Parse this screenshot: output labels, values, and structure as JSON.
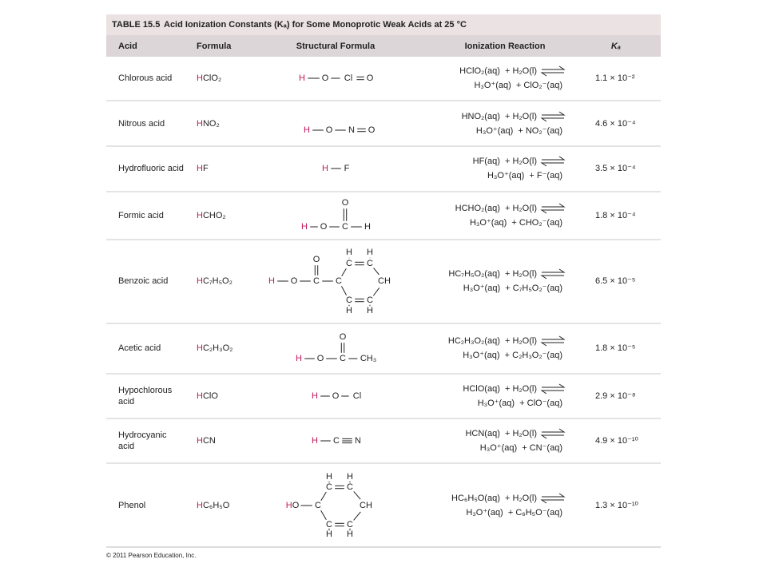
{
  "table": {
    "title_label": "TABLE 15.5",
    "title": "Acid Ionization Constants (Kₐ) for Some Monoprotic Weak Acids at 25 °C",
    "headers": [
      "Acid",
      "Formula",
      "Structural Formula",
      "Ionization Reaction",
      "Kₐ"
    ],
    "rows": [
      {
        "acid": [
          "Chlorous acid"
        ],
        "formula": "HClO₂",
        "structure": [
          "H",
          "O",
          "Cl",
          "O"
        ],
        "reaction": [
          "HClO₂(aq)  + H₂O(l)",
          "H₃O⁺(aq)  + ClO₂⁻(aq)"
        ],
        "ka": "1.1 × 10⁻²"
      },
      {
        "acid": [
          "Nitrous acid"
        ],
        "formula": "HNO₂",
        "structure": [
          "H",
          "O",
          "N",
          "O"
        ],
        "reaction": [
          "HNO₂(aq)  + H₂O(l)",
          "H₃O⁺(aq)  + NO₂⁻(aq)"
        ],
        "ka": "4.6 × 10⁻⁴"
      },
      {
        "acid": [
          "Hydrofluoric acid"
        ],
        "formula": "HF",
        "structure": [
          "H",
          "F"
        ],
        "reaction": [
          "HF(aq)  + H₂O(l)",
          "H₃O⁺(aq)  + F⁻(aq)"
        ],
        "ka": "3.5 × 10⁻⁴"
      },
      {
        "acid": [
          "Formic acid"
        ],
        "formula": "HCHO₂",
        "structure": [
          "O",
          "H",
          "O",
          "C",
          "H"
        ],
        "reaction": [
          "HCHO₂(aq)  + H₂O(l)",
          "H₃O⁺(aq)  + CHO₂⁻(aq)"
        ],
        "ka": "1.8 × 10⁻⁴"
      },
      {
        "acid": [
          "Benzoic acid"
        ],
        "formula": "HC₇H₅O₂",
        "structure": [
          "O",
          "H",
          "O",
          "C",
          "C",
          "C",
          "C",
          "CH",
          "C",
          "C",
          "H",
          "H",
          "H",
          "H"
        ],
        "reaction": [
          "HC₇H₅O₂(aq)  + H₂O(l)",
          "H₃O⁺(aq)  + C₇H₅O₂⁻(aq)"
        ],
        "ka": "6.5 × 10⁻⁵"
      },
      {
        "acid": [
          "Acetic acid"
        ],
        "formula": "HC₂H₃O₂",
        "structure": [
          "O",
          "H",
          "O",
          "C",
          "CH₃"
        ],
        "reaction": [
          "HC₂H₃O₂(aq)  + H₂O(l)",
          "H₃O⁺(aq)  + C₂H₃O₂⁻(aq)"
        ],
        "ka": "1.8 × 10⁻⁵"
      },
      {
        "acid": [
          "Hypochlorous",
          "acid"
        ],
        "formula": "HClO",
        "structure": [
          "H",
          "O",
          "Cl"
        ],
        "reaction": [
          "HClO(aq)  + H₂O(l)",
          "H₃O⁺(aq)  + ClO⁻(aq)"
        ],
        "ka": "2.9 × 10⁻⁸"
      },
      {
        "acid": [
          "Hydrocyanic",
          "acid"
        ],
        "formula": "HCN",
        "structure": [
          "H",
          "C",
          "N"
        ],
        "reaction": [
          "HCN(aq)  + H₂O(l)",
          "H₃O⁺(aq)  + CN⁻(aq)"
        ],
        "ka": "4.9 × 10⁻¹⁰"
      },
      {
        "acid": [
          "Phenol"
        ],
        "formula": "HC₆H₅O",
        "structure": [
          "HO",
          "C",
          "C",
          "C",
          "CH",
          "C",
          "C",
          "H",
          "H",
          "H",
          "H"
        ],
        "reaction": [
          "HC₆H₅O(aq)  + H₂O(l)",
          "H₃O⁺(aq)  + C₆H₅O⁻(aq)"
        ],
        "ka": "1.3 × 10⁻¹⁰"
      }
    ]
  },
  "footer": "© 2011 Pearson Education, Inc."
}
